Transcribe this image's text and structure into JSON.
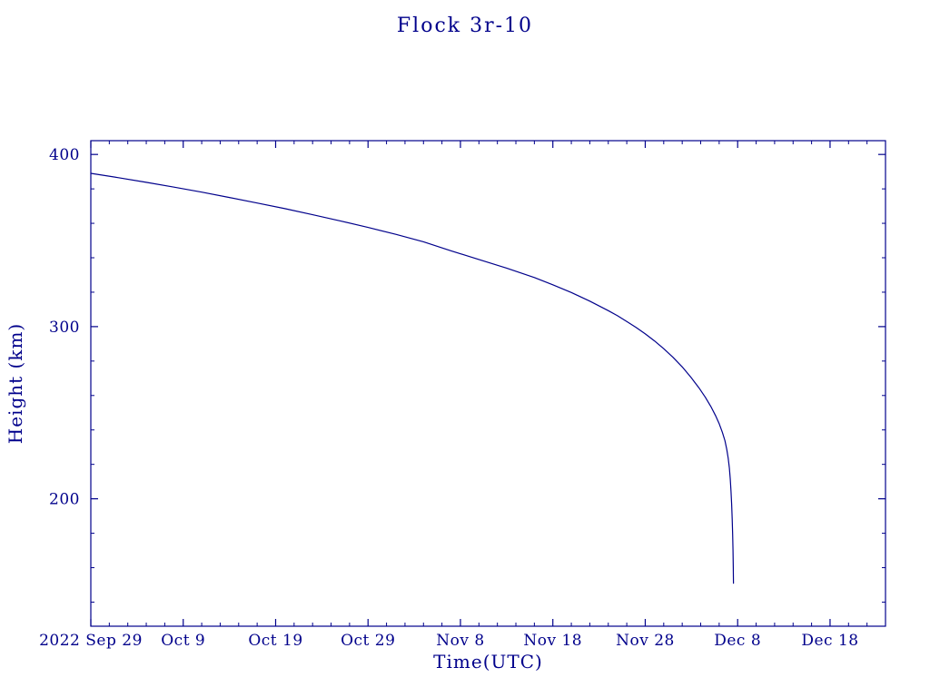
{
  "page": {
    "background": "#ffffff",
    "accent_color": "#00008b"
  },
  "chart_data": {
    "type": "line",
    "title": "Flock 3r-10",
    "xlabel": "Time(UTC)",
    "ylabel": "Height (km)",
    "x_axis_unit": "days since first tick (2022 Sep 29)",
    "xlim": [
      0,
      86
    ],
    "ylim": [
      126,
      408
    ],
    "x_ticks": [
      0,
      10,
      20,
      30,
      40,
      50,
      60,
      70,
      80
    ],
    "x_tick_labels": [
      "2022 Sep 29",
      "Oct 9",
      "Oct 19",
      "Oct 29",
      "Nov 8",
      "Nov 18",
      "Nov 28",
      "Dec 8",
      "Dec 18"
    ],
    "x_minor_step": 2,
    "y_ticks": [
      200,
      300,
      400
    ],
    "y_tick_labels": [
      "200",
      "300",
      "400"
    ],
    "y_minor_step": 20,
    "grid": false,
    "legend": "none",
    "line_color": "#00008b",
    "series": [
      {
        "name": "Height (km)",
        "points": [
          [
            0,
            389
          ],
          [
            3,
            386.5
          ],
          [
            6,
            383.8
          ],
          [
            9,
            381
          ],
          [
            12,
            378.1
          ],
          [
            15,
            375
          ],
          [
            18,
            371.8
          ],
          [
            21,
            368.5
          ],
          [
            24,
            365
          ],
          [
            27,
            361.4
          ],
          [
            30,
            357.6
          ],
          [
            33,
            353.6
          ],
          [
            36,
            349.3
          ],
          [
            39,
            344
          ],
          [
            42,
            339
          ],
          [
            45,
            334
          ],
          [
            48,
            328.5
          ],
          [
            50,
            324.3
          ],
          [
            52,
            319.8
          ],
          [
            54,
            314.8
          ],
          [
            56,
            309.3
          ],
          [
            57,
            306.3
          ],
          [
            58,
            303
          ],
          [
            59,
            299.5
          ],
          [
            60,
            295.8
          ],
          [
            61,
            291.7
          ],
          [
            62,
            287.2
          ],
          [
            63,
            282.2
          ],
          [
            64,
            276.6
          ],
          [
            65,
            270.2
          ],
          [
            65.8,
            264.5
          ],
          [
            66.5,
            259
          ],
          [
            67.1,
            253.6
          ],
          [
            67.6,
            248.4
          ],
          [
            68,
            243.6
          ],
          [
            68.35,
            238.6
          ],
          [
            68.62,
            233.8
          ],
          [
            68.82,
            228.8
          ],
          [
            68.98,
            223.6
          ],
          [
            69.1,
            217.8
          ],
          [
            69.2,
            211.3
          ],
          [
            69.28,
            204.3
          ],
          [
            69.35,
            196.8
          ],
          [
            69.41,
            188.3
          ],
          [
            69.46,
            179.3
          ],
          [
            69.5,
            170
          ],
          [
            69.53,
            160
          ],
          [
            69.55,
            151
          ]
        ]
      }
    ]
  }
}
